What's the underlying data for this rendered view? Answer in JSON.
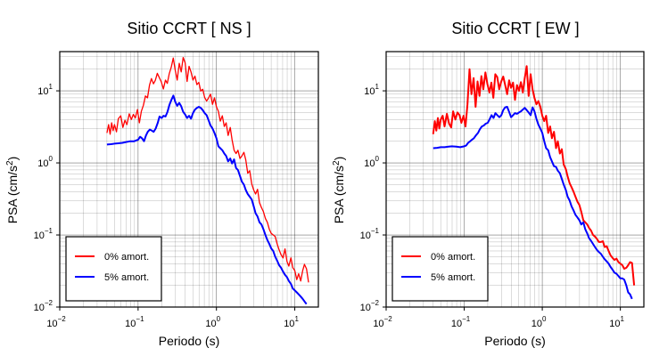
{
  "chart_data": [
    {
      "type": "line",
      "title": "Sitio CCRT [ NS ]",
      "xlabel": "Periodo (s)",
      "ylabel_prefix": "PSA (cm/s",
      "ylabel_exp": "2",
      "ylabel_suffix": ")",
      "xscale": "log",
      "yscale": "log",
      "xlim": [
        0.01,
        20
      ],
      "ylim": [
        0.01,
        35
      ],
      "xticks": [
        0.01,
        0.1,
        1,
        10
      ],
      "xtick_labels": [
        {
          "base": "10",
          "exp": "−2"
        },
        {
          "base": "10",
          "exp": "−1"
        },
        {
          "base": "10",
          "exp": "0"
        },
        {
          "base": "10",
          "exp": "1"
        }
      ],
      "yticks": [
        0.01,
        0.1,
        1,
        10
      ],
      "ytick_labels": [
        {
          "base": "10",
          "exp": "−2"
        },
        {
          "base": "10",
          "exp": "−1"
        },
        {
          "base": "10",
          "exp": "0"
        },
        {
          "base": "10",
          "exp": "1"
        }
      ],
      "grid": true,
      "legend_position": "bottom-left",
      "series": [
        {
          "name": "0% amort.",
          "color": "#ff0000",
          "width": 1.3,
          "x": [
            0.04,
            0.042,
            0.044,
            0.046,
            0.048,
            0.05,
            0.053,
            0.056,
            0.06,
            0.064,
            0.068,
            0.072,
            0.077,
            0.082,
            0.087,
            0.092,
            0.098,
            0.104,
            0.11,
            0.117,
            0.124,
            0.132,
            0.14,
            0.148,
            0.157,
            0.166,
            0.176,
            0.187,
            0.198,
            0.21,
            0.223,
            0.236,
            0.25,
            0.265,
            0.281,
            0.298,
            0.316,
            0.335,
            0.355,
            0.376,
            0.398,
            0.422,
            0.447,
            0.474,
            0.502,
            0.532,
            0.563,
            0.596,
            0.631,
            0.668,
            0.708,
            0.75,
            0.794,
            0.841,
            0.891,
            0.944,
            1.0,
            1.06,
            1.12,
            1.19,
            1.26,
            1.33,
            1.41,
            1.5,
            1.58,
            1.68,
            1.78,
            1.88,
            2.0,
            2.11,
            2.24,
            2.37,
            2.51,
            2.66,
            2.82,
            2.99,
            3.16,
            3.35,
            3.55,
            3.76,
            3.98,
            4.22,
            4.47,
            4.73,
            5.01,
            5.31,
            5.62,
            5.96,
            6.31,
            6.68,
            7.08,
            7.5,
            7.94,
            8.41,
            8.91,
            9.44,
            10.0,
            10.6,
            11.2,
            11.9,
            12.6,
            13.3,
            14.1,
            15.0
          ],
          "y": [
            2.6,
            3.4,
            2.5,
            3.6,
            2.8,
            3.4,
            2.7,
            4.1,
            4.5,
            3.1,
            3.9,
            3.4,
            4.8,
            4.0,
            4.7,
            4.2,
            5.5,
            3.6,
            5.2,
            6.3,
            8.5,
            8.0,
            12.1,
            14.8,
            12.5,
            14.0,
            17.5,
            15.2,
            13.3,
            10.6,
            14.1,
            12.7,
            17.3,
            21.2,
            28.5,
            19.3,
            14.1,
            24.1,
            18.3,
            29.0,
            24.5,
            13.5,
            21.9,
            18.3,
            14.1,
            16.0,
            12.2,
            13.1,
            9.9,
            10.5,
            8.1,
            7.2,
            8.0,
            9.0,
            6.5,
            8.0,
            6.0,
            5.2,
            3.8,
            4.5,
            3.2,
            3.6,
            2.4,
            3.1,
            2.1,
            1.5,
            1.35,
            1.5,
            1.15,
            1.25,
            1.4,
            1.1,
            0.72,
            0.78,
            0.51,
            0.42,
            0.37,
            0.43,
            0.28,
            0.24,
            0.21,
            0.17,
            0.15,
            0.12,
            0.105,
            0.1,
            0.095,
            0.075,
            0.062,
            0.053,
            0.048,
            0.064,
            0.043,
            0.037,
            0.048,
            0.035,
            0.032,
            0.024,
            0.029,
            0.023,
            0.032,
            0.039,
            0.034,
            0.022
          ]
        },
        {
          "name": "5% amort.",
          "color": "#0000ff",
          "width": 2.0,
          "x": [
            0.04,
            0.045,
            0.05,
            0.056,
            0.063,
            0.07,
            0.079,
            0.089,
            0.1,
            0.106,
            0.112,
            0.119,
            0.126,
            0.133,
            0.141,
            0.15,
            0.158,
            0.168,
            0.178,
            0.188,
            0.2,
            0.211,
            0.224,
            0.237,
            0.251,
            0.266,
            0.282,
            0.299,
            0.316,
            0.335,
            0.355,
            0.376,
            0.398,
            0.422,
            0.447,
            0.474,
            0.502,
            0.532,
            0.563,
            0.596,
            0.631,
            0.668,
            0.708,
            0.75,
            0.794,
            0.841,
            0.891,
            0.944,
            1.0,
            1.06,
            1.12,
            1.19,
            1.26,
            1.33,
            1.41,
            1.5,
            1.58,
            1.68,
            1.78,
            1.88,
            2.0,
            2.11,
            2.24,
            2.37,
            2.51,
            2.66,
            2.82,
            2.99,
            3.16,
            3.35,
            3.55,
            3.76,
            3.98,
            4.22,
            4.47,
            4.73,
            5.01,
            5.31,
            5.62,
            5.96,
            6.31,
            6.68,
            7.08,
            7.5,
            7.94,
            8.41,
            8.91,
            9.44,
            10.0,
            10.6,
            11.2,
            11.9,
            12.6,
            13.3,
            14.1
          ],
          "y": [
            1.8,
            1.82,
            1.85,
            1.87,
            1.9,
            1.95,
            2.0,
            2.0,
            2.1,
            2.3,
            2.2,
            2.0,
            2.4,
            2.7,
            2.9,
            2.8,
            2.7,
            3.0,
            3.6,
            4.4,
            4.2,
            4.5,
            4.4,
            5.1,
            6.4,
            7.5,
            8.6,
            7.0,
            6.2,
            6.8,
            6.1,
            5.1,
            4.7,
            4.2,
            4.5,
            4.1,
            4.9,
            5.5,
            5.8,
            6.0,
            5.8,
            5.4,
            4.9,
            4.6,
            3.9,
            3.3,
            3.0,
            2.6,
            2.2,
            1.7,
            1.6,
            1.5,
            1.35,
            1.25,
            1.05,
            1.15,
            0.98,
            1.12,
            0.85,
            0.8,
            0.66,
            0.55,
            0.5,
            0.42,
            0.37,
            0.34,
            0.31,
            0.25,
            0.2,
            0.18,
            0.15,
            0.14,
            0.12,
            0.1,
            0.085,
            0.075,
            0.065,
            0.06,
            0.05,
            0.044,
            0.038,
            0.035,
            0.031,
            0.028,
            0.026,
            0.023,
            0.021,
            0.018,
            0.017,
            0.016,
            0.015,
            0.014,
            0.013,
            0.012,
            0.011
          ]
        }
      ]
    },
    {
      "type": "line",
      "title": "Sitio CCRT [ EW ]",
      "xlabel": "Periodo (s)",
      "ylabel_prefix": "PSA (cm/s",
      "ylabel_exp": "2",
      "ylabel_suffix": ")",
      "xscale": "log",
      "yscale": "log",
      "xlim": [
        0.01,
        20
      ],
      "ylim": [
        0.01,
        35
      ],
      "xticks": [
        0.01,
        0.1,
        1,
        10
      ],
      "xtick_labels": [
        {
          "base": "10",
          "exp": "−2"
        },
        {
          "base": "10",
          "exp": "−1"
        },
        {
          "base": "10",
          "exp": "0"
        },
        {
          "base": "10",
          "exp": "1"
        }
      ],
      "yticks": [
        0.01,
        0.1,
        1,
        10
      ],
      "ytick_labels": [
        {
          "base": "10",
          "exp": "−2"
        },
        {
          "base": "10",
          "exp": "−1"
        },
        {
          "base": "10",
          "exp": "0"
        },
        {
          "base": "10",
          "exp": "1"
        }
      ],
      "grid": true,
      "legend_position": "bottom-left",
      "series": [
        {
          "name": "0% amort.",
          "color": "#ff0000",
          "width": 2.0,
          "x": [
            0.04,
            0.042,
            0.044,
            0.046,
            0.048,
            0.05,
            0.053,
            0.056,
            0.06,
            0.064,
            0.068,
            0.072,
            0.077,
            0.082,
            0.087,
            0.092,
            0.098,
            0.104,
            0.11,
            0.117,
            0.124,
            0.132,
            0.14,
            0.148,
            0.157,
            0.166,
            0.176,
            0.187,
            0.198,
            0.21,
            0.223,
            0.236,
            0.25,
            0.265,
            0.281,
            0.298,
            0.316,
            0.335,
            0.355,
            0.376,
            0.398,
            0.422,
            0.447,
            0.474,
            0.502,
            0.532,
            0.563,
            0.596,
            0.631,
            0.668,
            0.708,
            0.75,
            0.794,
            0.841,
            0.891,
            0.944,
            1.0,
            1.06,
            1.12,
            1.19,
            1.26,
            1.33,
            1.41,
            1.5,
            1.58,
            1.68,
            1.78,
            1.88,
            2.0,
            2.11,
            2.24,
            2.37,
            2.51,
            2.66,
            2.82,
            2.99,
            3.16,
            3.35,
            3.55,
            3.76,
            3.98,
            4.22,
            4.47,
            4.73,
            5.01,
            5.31,
            5.62,
            5.96,
            6.31,
            6.68,
            7.08,
            7.5,
            7.94,
            8.41,
            8.91,
            9.44,
            10.0,
            10.6,
            11.2,
            11.9,
            12.6,
            13.3,
            14.1,
            15.0
          ],
          "y": [
            2.5,
            3.8,
            2.8,
            4.2,
            3.0,
            4.0,
            4.5,
            3.2,
            4.8,
            3.5,
            3.1,
            5.2,
            4.0,
            5.0,
            4.6,
            3.6,
            4.5,
            3.2,
            6.5,
            20.0,
            9.0,
            15.0,
            6.0,
            13.5,
            8.5,
            16.0,
            10.5,
            18.0,
            12.5,
            9.5,
            13.0,
            8.0,
            17.0,
            15.5,
            10.5,
            13.5,
            15.8,
            12.0,
            9.0,
            14.0,
            11.0,
            13.0,
            7.5,
            12.0,
            10.0,
            13.2,
            9.5,
            15.0,
            22.0,
            8.5,
            17.0,
            10.5,
            8.0,
            6.5,
            7.2,
            6.0,
            4.5,
            3.8,
            4.5,
            2.6,
            3.2,
            2.2,
            2.7,
            1.6,
            2.0,
            1.35,
            1.55,
            0.95,
            0.82,
            0.65,
            0.52,
            0.46,
            0.4,
            0.34,
            0.29,
            0.26,
            0.21,
            0.16,
            0.15,
            0.14,
            0.125,
            0.115,
            0.1,
            0.095,
            0.088,
            0.08,
            0.08,
            0.082,
            0.068,
            0.07,
            0.06,
            0.052,
            0.048,
            0.045,
            0.047,
            0.042,
            0.04,
            0.038,
            0.034,
            0.035,
            0.038,
            0.042,
            0.041,
            0.02
          ]
        },
        {
          "name": "5% amort.",
          "color": "#0000ff",
          "width": 2.0,
          "x": [
            0.04,
            0.045,
            0.05,
            0.056,
            0.063,
            0.07,
            0.079,
            0.089,
            0.1,
            0.106,
            0.112,
            0.119,
            0.126,
            0.133,
            0.141,
            0.15,
            0.158,
            0.168,
            0.178,
            0.188,
            0.2,
            0.211,
            0.224,
            0.237,
            0.251,
            0.266,
            0.282,
            0.299,
            0.316,
            0.335,
            0.355,
            0.376,
            0.398,
            0.422,
            0.447,
            0.474,
            0.502,
            0.532,
            0.563,
            0.596,
            0.631,
            0.668,
            0.708,
            0.75,
            0.794,
            0.841,
            0.891,
            0.944,
            1.0,
            1.06,
            1.12,
            1.19,
            1.26,
            1.33,
            1.41,
            1.5,
            1.58,
            1.68,
            1.78,
            1.88,
            2.0,
            2.11,
            2.24,
            2.37,
            2.51,
            2.66,
            2.82,
            2.99,
            3.16,
            3.35,
            3.55,
            3.76,
            3.98,
            4.22,
            4.47,
            4.73,
            5.01,
            5.31,
            5.62,
            5.96,
            6.31,
            6.68,
            7.08,
            7.5,
            7.94,
            8.41,
            8.91,
            9.44,
            10.0,
            10.6,
            11.2,
            11.9,
            12.6,
            13.3,
            14.1
          ],
          "y": [
            1.6,
            1.62,
            1.65,
            1.65,
            1.68,
            1.7,
            1.68,
            1.65,
            1.7,
            1.75,
            1.9,
            2.0,
            2.1,
            2.2,
            2.4,
            2.6,
            2.9,
            3.2,
            3.3,
            3.5,
            3.6,
            4.0,
            4.6,
            4.2,
            4.9,
            4.6,
            4.3,
            4.6,
            5.4,
            5.9,
            6.0,
            5.1,
            4.3,
            4.6,
            4.9,
            4.8,
            5.0,
            5.2,
            5.5,
            5.8,
            5.4,
            5.0,
            4.6,
            5.9,
            5.2,
            4.1,
            3.4,
            3.0,
            2.6,
            2.0,
            1.6,
            1.5,
            1.2,
            1.05,
            0.9,
            0.88,
            0.78,
            0.72,
            0.6,
            0.5,
            0.42,
            0.34,
            0.3,
            0.25,
            0.22,
            0.19,
            0.175,
            0.16,
            0.14,
            0.15,
            0.12,
            0.105,
            0.09,
            0.083,
            0.075,
            0.068,
            0.062,
            0.058,
            0.055,
            0.05,
            0.046,
            0.043,
            0.04,
            0.036,
            0.033,
            0.03,
            0.029,
            0.027,
            0.025,
            0.025,
            0.024,
            0.02,
            0.016,
            0.015,
            0.013
          ]
        }
      ]
    }
  ]
}
